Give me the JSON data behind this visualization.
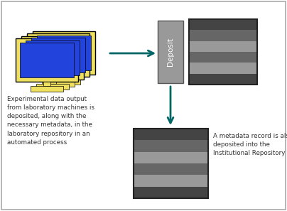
{
  "arrow_color": "#006666",
  "deposit_box_color": "#999999",
  "deposit_text": "Deposit",
  "deposit_text_color": "#ffffff",
  "stripe_colors": [
    "#444444",
    "#999999",
    "#666666",
    "#999999",
    "#666666",
    "#444444"
  ],
  "computer_screen_color": "#2244dd",
  "computer_bezel_color": "#f0e060",
  "left_text": "Experimental data output\nfrom laboratory machines is\ndeposited, along with the\nnecessary metadata, in the\nlaboratory repository in an\nautomated process",
  "right_text": "A metadata record is also\ndeposited into the\nInstitutional Repository",
  "left_text_color": "#333333",
  "right_text_color": "#333333",
  "fig_width": 4.04,
  "fig_height": 2.97,
  "dpi": 100
}
